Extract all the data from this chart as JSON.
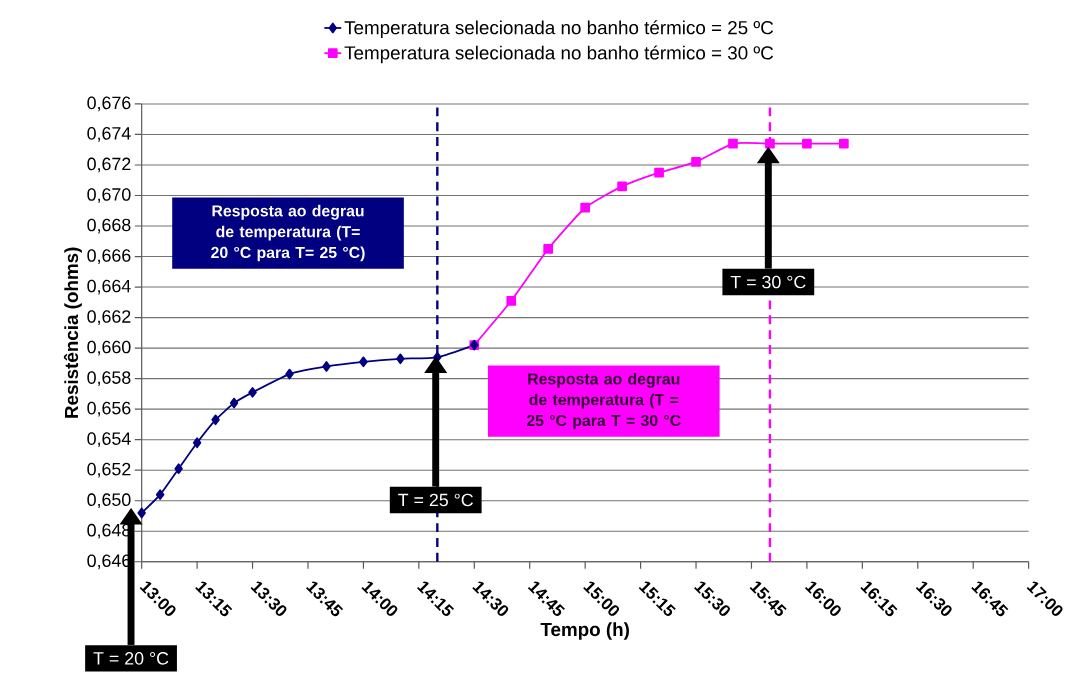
{
  "chart_data": {
    "type": "line",
    "xlabel": "Tempo (h)",
    "ylabel": "Resistência (ohms)",
    "xlim": [
      13,
      17
    ],
    "ylim": [
      0.646,
      0.676
    ],
    "xticks": [
      {
        "value": 13,
        "label": "13:00"
      },
      {
        "value": 13.25,
        "label": "13:15"
      },
      {
        "value": 13.5,
        "label": "13:30"
      },
      {
        "value": 13.75,
        "label": "13:45"
      },
      {
        "value": 14,
        "label": "14:00"
      },
      {
        "value": 14.25,
        "label": "14:15"
      },
      {
        "value": 14.5,
        "label": "14:30"
      },
      {
        "value": 14.75,
        "label": "14:45"
      },
      {
        "value": 15,
        "label": "15:00"
      },
      {
        "value": 15.25,
        "label": "15:15"
      },
      {
        "value": 15.5,
        "label": "15:30"
      },
      {
        "value": 15.75,
        "label": "15:45"
      },
      {
        "value": 16,
        "label": "16:00"
      },
      {
        "value": 16.25,
        "label": "16:15"
      },
      {
        "value": 16.5,
        "label": "16:30"
      },
      {
        "value": 16.75,
        "label": "16:45"
      },
      {
        "value": 17,
        "label": "17:00"
      }
    ],
    "yticks": [
      {
        "value": 0.646,
        "label": "0,646"
      },
      {
        "value": 0.648,
        "label": "0,648"
      },
      {
        "value": 0.65,
        "label": "0,650"
      },
      {
        "value": 0.652,
        "label": "0,652"
      },
      {
        "value": 0.654,
        "label": "0,654"
      },
      {
        "value": 0.656,
        "label": "0,656"
      },
      {
        "value": 0.658,
        "label": "0,658"
      },
      {
        "value": 0.66,
        "label": "0,660"
      },
      {
        "value": 0.662,
        "label": "0,662"
      },
      {
        "value": 0.664,
        "label": "0,664"
      },
      {
        "value": 0.666,
        "label": "0,666"
      },
      {
        "value": 0.668,
        "label": "0,668"
      },
      {
        "value": 0.67,
        "label": "0,670"
      },
      {
        "value": 0.672,
        "label": "0,672"
      },
      {
        "value": 0.674,
        "label": "0,674"
      },
      {
        "value": 0.676,
        "label": "0,676"
      }
    ],
    "grid": "y",
    "legend": "top",
    "line_style": "solid",
    "series": [
      {
        "name": "Temperatura selecionada no banho térmico = 25 ºC",
        "color": "#000080",
        "marker": "diamond",
        "x": [
          13,
          13.0833,
          13.1667,
          13.25,
          13.3333,
          13.4167,
          13.5,
          13.6667,
          13.8333,
          14,
          14.1667,
          14.3333,
          14.5
        ],
        "values": [
          0.6492,
          0.6504,
          0.6521,
          0.6538,
          0.6553,
          0.6564,
          0.6571,
          0.6583,
          0.6588,
          0.6591,
          0.6593,
          0.6594,
          0.6602
        ]
      },
      {
        "name": "Temperatura selecionada no banho térmico = 30 ºC",
        "color": "#ff00ff",
        "marker": "square",
        "x": [
          14.5,
          14.6667,
          14.8333,
          15,
          15.1667,
          15.3333,
          15.5,
          15.6667,
          15.8333,
          16,
          16.1667
        ],
        "values": [
          0.6602,
          0.6631,
          0.6665,
          0.6692,
          0.6706,
          0.6715,
          0.6722,
          0.6734,
          0.6734,
          0.6734,
          0.6734
        ]
      }
    ],
    "ref_lines": [
      {
        "axis": "x",
        "value": 14.3333,
        "color": "#000080",
        "line_style": "dashed"
      },
      {
        "axis": "x",
        "value": 15.8333,
        "color": "#ff00ff",
        "line_style": "dashed"
      }
    ],
    "annotations": [
      "Resposta ao degrau de temperatura (T= 20 °C para T= 25 °C)",
      "Resposta ao degrau de temperatura (T = 25 °C para T = 30 °C",
      "T = 20 °C",
      "T = 25 °C",
      "T = 30 °C"
    ]
  }
}
